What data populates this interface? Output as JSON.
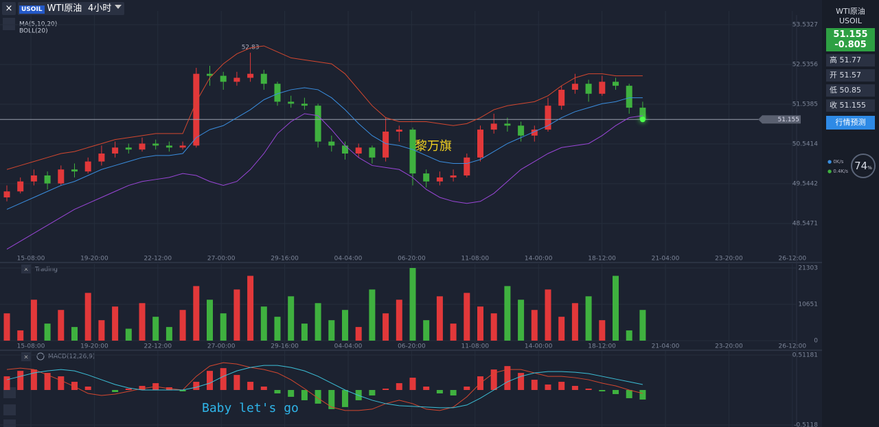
{
  "toolbar": {
    "symbol_badge": "USOIL",
    "symbol": "WTI原油",
    "period": "4小时"
  },
  "chart_data": [
    {
      "type": "candlestick",
      "indicators": [
        "MA(5,10,20)",
        "BOLL(20)"
      ],
      "x_labels": [
        "15-08:00",
        "19-20:00",
        "22-12:00",
        "27-00:00",
        "29-16:00",
        "04-04:00",
        "06-20:00",
        "11-08:00",
        "14-00:00",
        "18-12:00",
        "21-04:00",
        "23-20:00",
        "26-12:00"
      ],
      "ylim": [
        47.79,
        53.773
      ],
      "yticks": [
        53.5327,
        52.5356,
        51.5385,
        50.5414,
        49.5442,
        48.5471
      ],
      "last_price": 51.155,
      "candles": [
        [
          49.2,
          49.5,
          49.1,
          49.35
        ],
        [
          49.35,
          49.7,
          49.3,
          49.6
        ],
        [
          49.6,
          49.9,
          49.5,
          49.75
        ],
        [
          49.75,
          49.85,
          49.4,
          49.55
        ],
        [
          49.55,
          50.0,
          49.5,
          49.9
        ],
        [
          49.9,
          50.05,
          49.7,
          49.85
        ],
        [
          49.85,
          50.2,
          49.8,
          50.1
        ],
        [
          50.1,
          50.5,
          50.0,
          50.3
        ],
        [
          50.3,
          50.6,
          50.2,
          50.45
        ],
        [
          50.45,
          50.55,
          50.3,
          50.4
        ],
        [
          50.4,
          50.7,
          50.35,
          50.55
        ],
        [
          50.55,
          50.65,
          50.4,
          50.5
        ],
        [
          50.5,
          50.6,
          50.35,
          50.45
        ],
        [
          50.45,
          50.6,
          50.4,
          50.5
        ],
        [
          50.5,
          52.45,
          50.45,
          52.3
        ],
        [
          52.3,
          52.5,
          52.0,
          52.25
        ],
        [
          52.25,
          52.35,
          51.9,
          52.1
        ],
        [
          52.1,
          52.35,
          52.0,
          52.2
        ],
        [
          52.2,
          52.83,
          52.1,
          52.3
        ],
        [
          52.3,
          52.4,
          51.9,
          52.05
        ],
        [
          52.05,
          52.1,
          51.5,
          51.6
        ],
        [
          51.6,
          51.75,
          51.45,
          51.55
        ],
        [
          51.55,
          51.7,
          51.4,
          51.5
        ],
        [
          51.5,
          51.55,
          50.45,
          50.6
        ],
        [
          50.6,
          50.75,
          50.35,
          50.5
        ],
        [
          50.5,
          50.6,
          50.15,
          50.3
        ],
        [
          50.3,
          50.55,
          50.2,
          50.45
        ],
        [
          50.45,
          50.5,
          50.05,
          50.2
        ],
        [
          50.2,
          51.2,
          50.1,
          50.85
        ],
        [
          50.85,
          51.0,
          50.6,
          50.9
        ],
        [
          50.9,
          50.95,
          49.5,
          49.8
        ],
        [
          49.8,
          49.9,
          49.45,
          49.6
        ],
        [
          49.6,
          49.85,
          49.5,
          49.7
        ],
        [
          49.7,
          49.9,
          49.6,
          49.75
        ],
        [
          49.75,
          50.3,
          49.7,
          50.2
        ],
        [
          50.2,
          51.0,
          50.1,
          50.9
        ],
        [
          50.9,
          51.3,
          50.8,
          51.05
        ],
        [
          51.05,
          51.2,
          50.85,
          51.0
        ],
        [
          51.0,
          51.1,
          50.6,
          50.75
        ],
        [
          50.75,
          51.0,
          50.6,
          50.9
        ],
        [
          50.9,
          51.7,
          50.85,
          51.5
        ],
        [
          51.5,
          52.0,
          51.4,
          51.9
        ],
        [
          51.9,
          52.3,
          51.8,
          52.05
        ],
        [
          52.05,
          52.15,
          51.6,
          51.8
        ],
        [
          51.8,
          52.25,
          51.75,
          52.1
        ],
        [
          52.1,
          52.2,
          51.9,
          52.0
        ],
        [
          52.0,
          52.05,
          51.3,
          51.45
        ],
        [
          51.45,
          51.6,
          51.1,
          51.155
        ]
      ],
      "up_color": "#e2383a",
      "down_color": "#3fb13f",
      "series": [
        {
          "color": "#d4472f",
          "values": [
            49.9,
            50.0,
            50.1,
            50.2,
            50.3,
            50.35,
            50.45,
            50.55,
            50.65,
            50.7,
            50.75,
            50.8,
            50.8,
            50.8,
            51.6,
            52.2,
            52.55,
            52.8,
            52.95,
            53.0,
            52.85,
            52.7,
            52.65,
            52.6,
            52.55,
            52.3,
            51.9,
            51.5,
            51.2,
            51.1,
            51.1,
            51.1,
            51.05,
            51.0,
            51.05,
            51.2,
            51.4,
            51.5,
            51.55,
            51.6,
            51.75,
            52.0,
            52.2,
            52.3,
            52.3,
            52.25,
            52.25,
            52.25
          ]
        },
        {
          "color": "#3a8ee0",
          "values": [
            48.9,
            49.05,
            49.2,
            49.35,
            49.5,
            49.6,
            49.75,
            49.9,
            50.0,
            50.1,
            50.2,
            50.25,
            50.25,
            50.3,
            50.7,
            50.9,
            51.0,
            51.2,
            51.4,
            51.65,
            51.8,
            51.9,
            51.95,
            51.9,
            51.7,
            51.4,
            51.05,
            50.75,
            50.55,
            50.5,
            50.4,
            50.25,
            50.1,
            50.05,
            50.05,
            50.15,
            50.35,
            50.55,
            50.7,
            50.85,
            51.0,
            51.2,
            51.35,
            51.45,
            51.55,
            51.6,
            51.7,
            51.7
          ]
        },
        {
          "color": "#9a46d8",
          "values": [
            47.9,
            48.1,
            48.3,
            48.5,
            48.7,
            48.9,
            49.05,
            49.2,
            49.35,
            49.5,
            49.6,
            49.65,
            49.7,
            49.8,
            49.75,
            49.6,
            49.5,
            49.6,
            49.9,
            50.3,
            50.8,
            51.1,
            51.3,
            51.25,
            50.9,
            50.5,
            50.2,
            50.0,
            49.95,
            49.9,
            49.7,
            49.4,
            49.2,
            49.1,
            49.05,
            49.1,
            49.3,
            49.6,
            49.9,
            50.1,
            50.3,
            50.45,
            50.5,
            50.55,
            50.75,
            51.0,
            51.2,
            51.25
          ]
        }
      ]
    },
    {
      "type": "volume",
      "title": "Trading",
      "ylim": [
        0,
        21303
      ],
      "yticks": [
        21303,
        10651,
        0
      ],
      "values": [
        8000,
        3000,
        12000,
        5000,
        9000,
        4000,
        14000,
        6000,
        10000,
        3500,
        11000,
        7000,
        4000,
        9000,
        16000,
        12000,
        8000,
        15000,
        19000,
        10000,
        7000,
        13000,
        5000,
        11000,
        6000,
        9000,
        4000,
        15000,
        8000,
        12000,
        21303,
        6000,
        13000,
        5000,
        14000,
        10000,
        8000,
        16000,
        12000,
        9000,
        15000,
        7000,
        11000,
        13000,
        6000,
        19000,
        3000,
        9000
      ]
    },
    {
      "type": "macd",
      "title": "MACD(12,26,9)",
      "ylim": [
        -0.5118,
        0.51181
      ],
      "yticks": [
        0.51181,
        -0.5118
      ],
      "values": [
        0.2,
        0.28,
        0.3,
        0.25,
        0.2,
        0.12,
        0.05,
        0.0,
        -0.03,
        0.02,
        0.06,
        0.1,
        0.04,
        -0.02,
        0.12,
        0.28,
        0.32,
        0.22,
        0.12,
        0.05,
        -0.05,
        -0.1,
        -0.15,
        -0.2,
        -0.28,
        -0.25,
        -0.15,
        -0.08,
        0.02,
        0.1,
        0.18,
        0.05,
        -0.05,
        -0.08,
        0.05,
        0.2,
        0.3,
        0.35,
        0.25,
        0.15,
        0.08,
        0.12,
        0.06,
        0.02,
        -0.02,
        -0.06,
        -0.12,
        -0.14
      ],
      "series": [
        {
          "color": "#d4472f",
          "values": [
            0.3,
            0.32,
            0.3,
            0.22,
            0.14,
            0.05,
            -0.05,
            -0.08,
            -0.06,
            -0.02,
            0.02,
            0.05,
            0.02,
            0.0,
            0.2,
            0.35,
            0.4,
            0.38,
            0.33,
            0.3,
            0.25,
            0.15,
            0.02,
            -0.12,
            -0.25,
            -0.3,
            -0.3,
            -0.28,
            -0.2,
            -0.15,
            -0.2,
            -0.28,
            -0.3,
            -0.25,
            -0.1,
            0.1,
            0.25,
            0.3,
            0.3,
            0.25,
            0.2,
            0.2,
            0.18,
            0.15,
            0.1,
            0.06,
            0.0,
            -0.05
          ]
        },
        {
          "color": "#3cc0d8",
          "values": [
            0.15,
            0.2,
            0.25,
            0.28,
            0.3,
            0.28,
            0.22,
            0.15,
            0.08,
            0.03,
            0.0,
            0.0,
            0.0,
            0.0,
            0.04,
            0.1,
            0.2,
            0.28,
            0.33,
            0.36,
            0.36,
            0.33,
            0.28,
            0.2,
            0.1,
            0.0,
            -0.08,
            -0.15,
            -0.2,
            -0.23,
            -0.24,
            -0.25,
            -0.26,
            -0.26,
            -0.22,
            -0.12,
            0.0,
            0.12,
            0.2,
            0.25,
            0.27,
            0.27,
            0.26,
            0.24,
            0.2,
            0.16,
            0.12,
            0.08
          ]
        }
      ]
    }
  ],
  "overlays": {
    "name_text": "黎万旗",
    "caption": "Baby let's go"
  },
  "panel": {
    "name": "WTI原油",
    "code": "USOIL",
    "price": 51.155,
    "change": -0.805,
    "stats": [
      {
        "label": "高",
        "value": 51.77
      },
      {
        "label": "开",
        "value": 51.57
      },
      {
        "label": "低",
        "value": 50.85
      },
      {
        "label": "收",
        "value": 51.155
      }
    ],
    "button": "行情预测",
    "upload": "0K/s",
    "download": "0.4K/s",
    "cpu": {
      "value": 74,
      "unit": "%"
    }
  }
}
